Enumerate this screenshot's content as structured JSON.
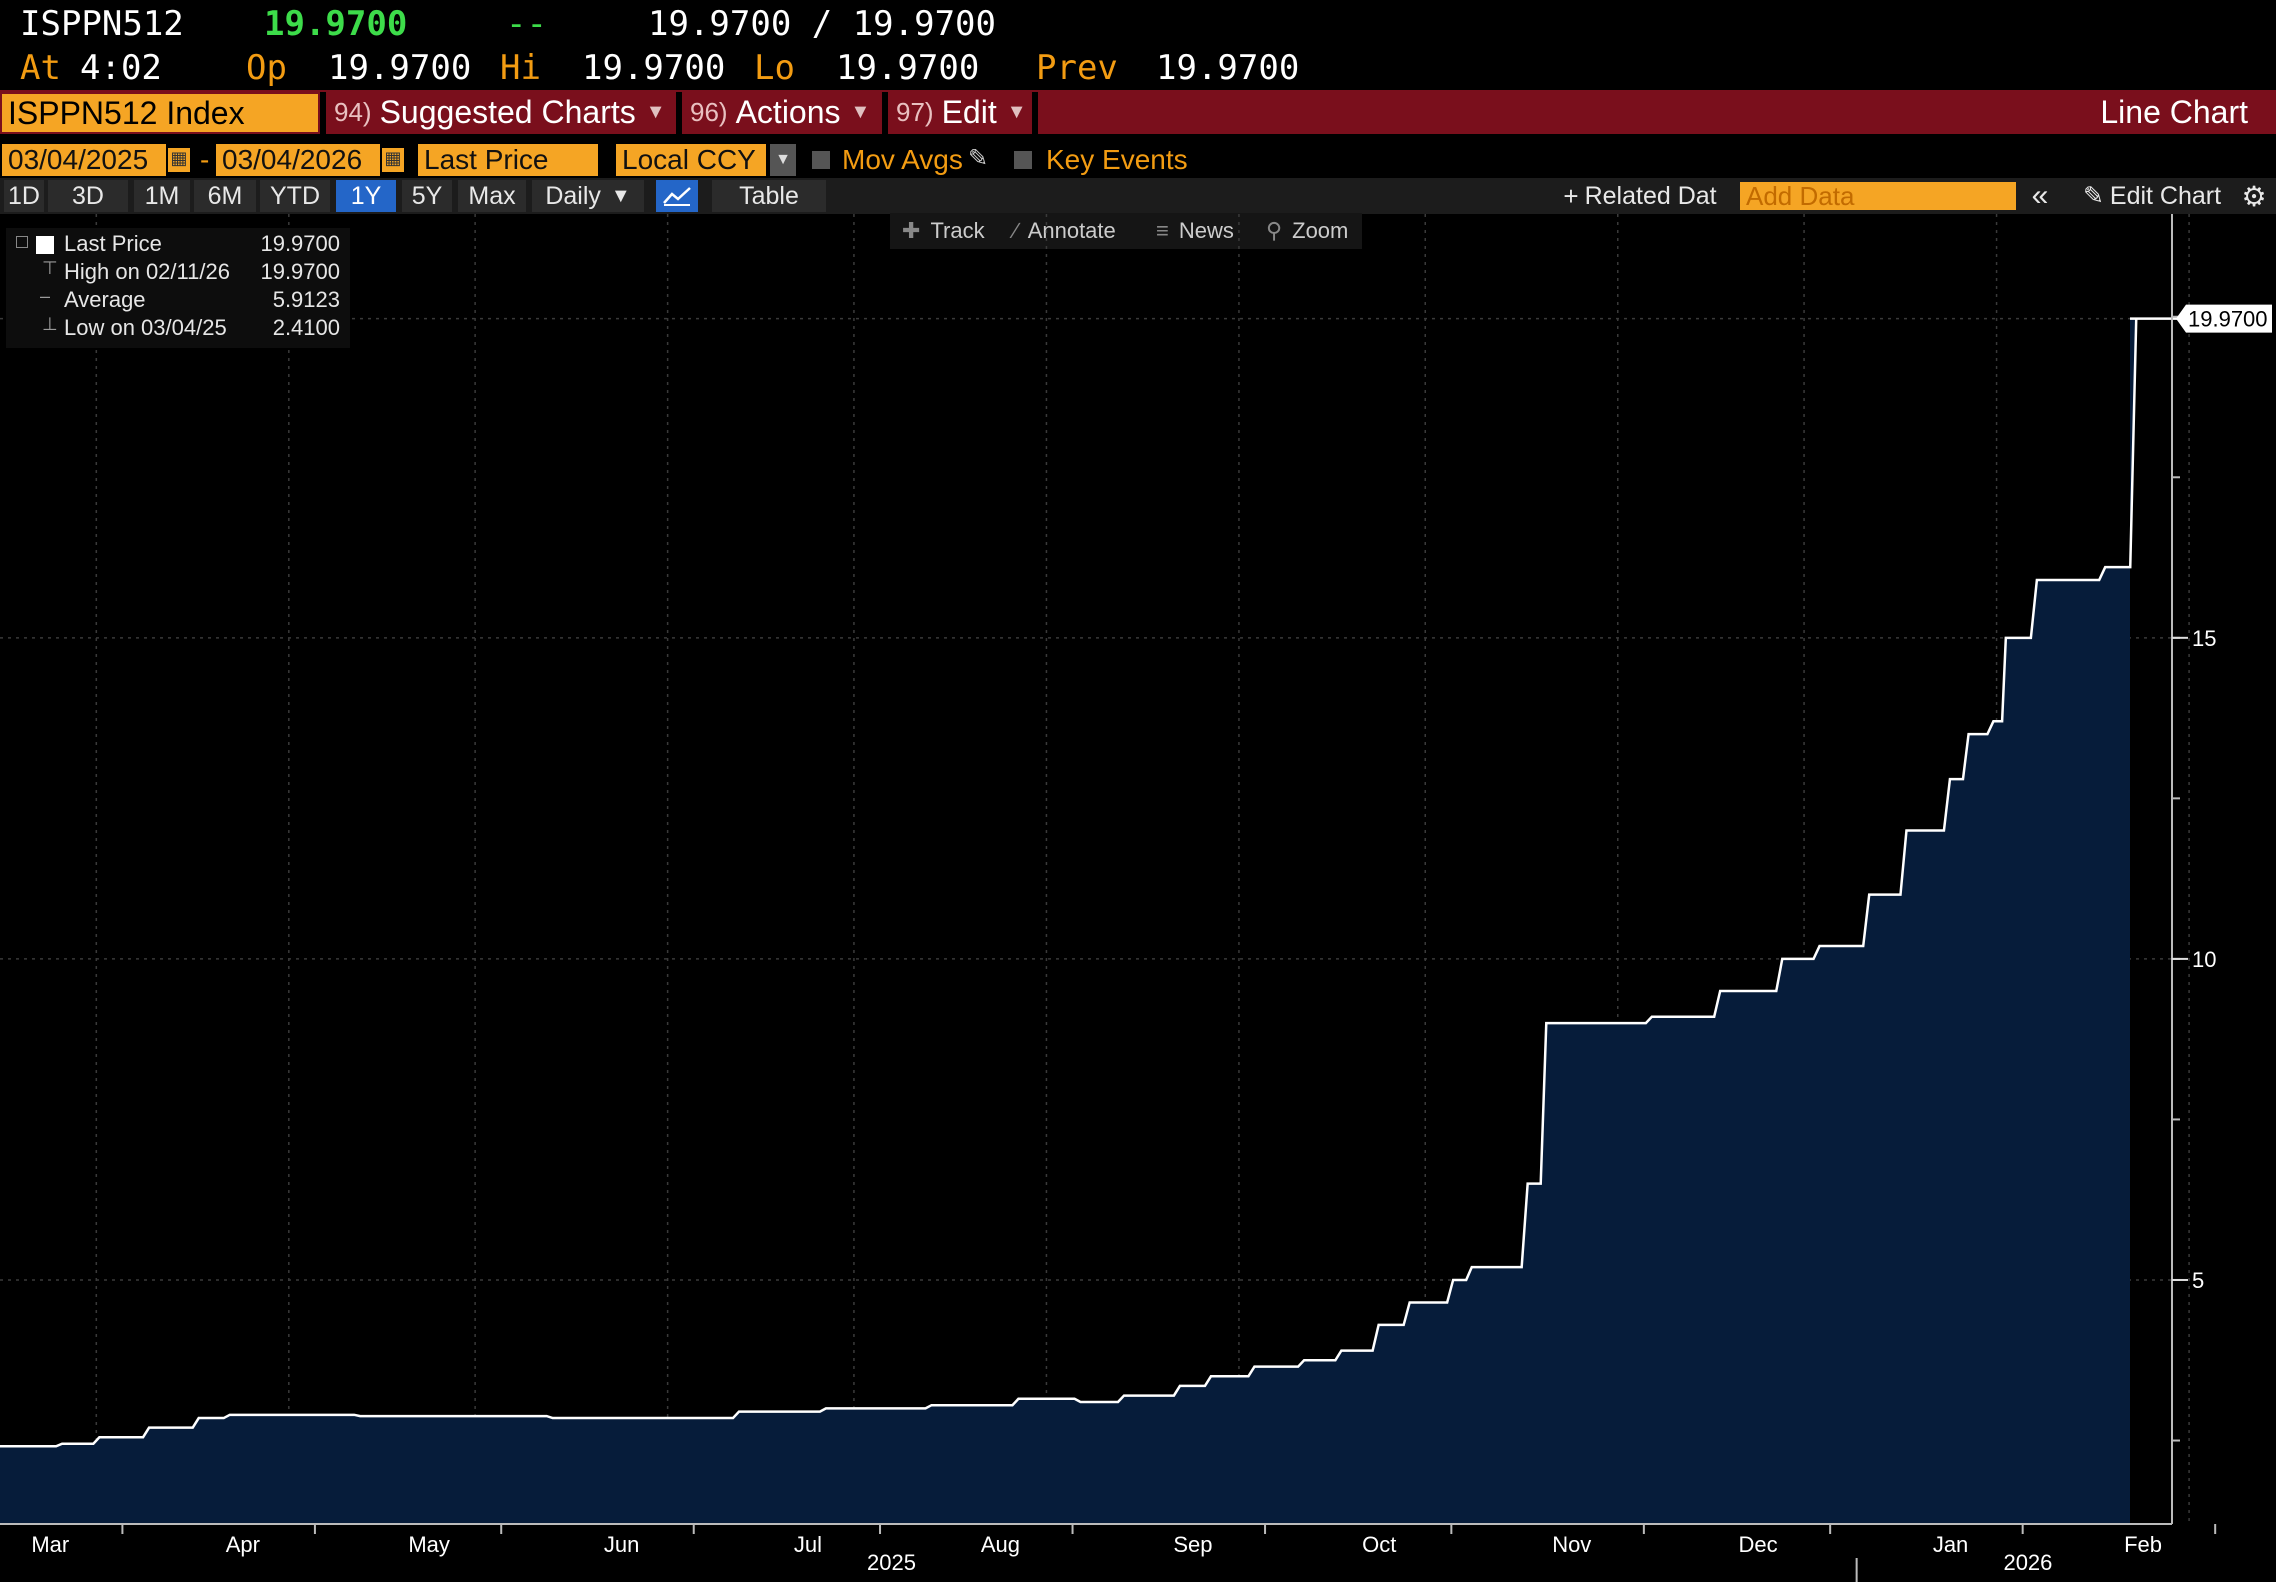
{
  "header": {
    "ticker": "ISPPN512",
    "last": "19.9700",
    "change": "--",
    "bid_ask": "19.9700 / 19.9700",
    "at_label": "At",
    "time": "4:02",
    "op_label": "Op",
    "op": "19.9700",
    "hi_label": "Hi",
    "hi": "19.9700",
    "lo_label": "Lo",
    "lo": "19.9700",
    "prev_label": "Prev",
    "prev": "19.9700"
  },
  "menubar": {
    "security": "ISPPN512 Index",
    "suggested_num": "94)",
    "suggested": "Suggested Charts",
    "actions_num": "96)",
    "actions": "Actions",
    "edit_num": "97)",
    "edit": "Edit",
    "chart_type": "Line Chart"
  },
  "options": {
    "start_date": "03/04/2025",
    "end_date": "03/04/2026",
    "separator": "-",
    "field": "Last Price",
    "currency": "Local CCY",
    "mov_avgs": "Mov Avgs",
    "key_events": "Key Events"
  },
  "periods": {
    "items": [
      "1D",
      "3D",
      "1M",
      "6M",
      "YTD",
      "1Y",
      "5Y",
      "Max"
    ],
    "active": "1Y",
    "frequency": "Daily",
    "table": "Table",
    "related": "Related Dat",
    "add_data_placeholder": "Add Data",
    "edit_chart": "Edit Chart"
  },
  "tools": {
    "track": "Track",
    "annotate": "Annotate",
    "news": "News",
    "zoom": "Zoom"
  },
  "legend": {
    "last_label": "Last Price",
    "last_value": "19.9700",
    "high_label": "High on 02/11/26",
    "high_value": "19.9700",
    "avg_label": "Average",
    "avg_value": "5.9123",
    "low_label": "Low on 03/04/25",
    "low_value": "2.4100"
  },
  "colors": {
    "area_fill": "#061c3a",
    "line": "#ffffff",
    "accent_orange": "#f39c12",
    "menu_red": "#7a0f1c",
    "active_blue": "#2466c8"
  },
  "chart_data": {
    "type": "area",
    "series": [
      {
        "name": "Last Price",
        "x": [
          "2025-03-04",
          "2025-03-14",
          "2025-03-20",
          "2025-03-28",
          "2025-04-05",
          "2025-04-10",
          "2025-04-20",
          "2025-05-01",
          "2025-05-15",
          "2025-06-01",
          "2025-06-15",
          "2025-07-01",
          "2025-07-15",
          "2025-08-01",
          "2025-08-15",
          "2025-08-25",
          "2025-09-01",
          "2025-09-10",
          "2025-09-15",
          "2025-09-22",
          "2025-09-30",
          "2025-10-06",
          "2025-10-12",
          "2025-10-17",
          "2025-10-24",
          "2025-10-27",
          "2025-11-01",
          "2025-11-05",
          "2025-11-08",
          "2025-11-18",
          "2025-11-25",
          "2025-12-02",
          "2025-12-06",
          "2025-12-12",
          "2025-12-16",
          "2025-12-22",
          "2025-12-24",
          "2025-12-30",
          "2026-01-05",
          "2026-01-08",
          "2026-01-12",
          "2026-01-15",
          "2026-01-19",
          "2026-01-21",
          "2026-01-26",
          "2026-02-02",
          "2026-02-06",
          "2026-02-11",
          "2026-03-04"
        ],
        "y": [
          2.41,
          2.45,
          2.55,
          2.7,
          2.85,
          2.9,
          2.9,
          2.88,
          2.88,
          2.85,
          2.85,
          2.95,
          3.0,
          3.05,
          3.15,
          3.1,
          3.2,
          3.35,
          3.5,
          3.65,
          3.75,
          3.9,
          4.3,
          4.65,
          5.0,
          5.2,
          5.2,
          6.5,
          9.0,
          9.0,
          9.1,
          9.1,
          9.5,
          9.5,
          10.0,
          10.2,
          10.2,
          11.0,
          12.0,
          12.0,
          12.8,
          13.5,
          13.7,
          15.0,
          15.9,
          15.9,
          16.1,
          19.97,
          19.97
        ]
      }
    ],
    "x_range": [
      "2025-03-04",
      "2026-03-04"
    ],
    "x_tick_labels": [
      "Mar",
      "Apr",
      "May",
      "Jun",
      "Jul",
      "Aug",
      "Sep",
      "Oct",
      "Nov",
      "Dec",
      "Jan",
      "Feb"
    ],
    "x_tick_dates": [
      "2025-03-15",
      "2025-04-15",
      "2025-05-15",
      "2025-06-15",
      "2025-07-15",
      "2025-08-15",
      "2025-09-15",
      "2025-10-15",
      "2025-11-15",
      "2025-12-15",
      "2026-01-15",
      "2026-02-15"
    ],
    "year_labels": [
      "2025",
      "2026"
    ],
    "year_dates": [
      "2025-08-01",
      "2026-01-31"
    ],
    "y_ticks": [
      5,
      10,
      15
    ],
    "ylim": [
      1.2,
      21.6
    ],
    "last_value_label": "19.9700",
    "grid": true,
    "legend_position": "top-left"
  }
}
